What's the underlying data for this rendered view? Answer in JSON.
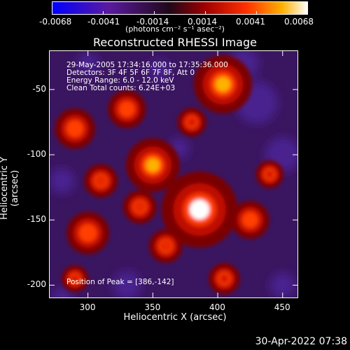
{
  "colorbar": {
    "ticks": [
      "-0.0068",
      "-0.0041",
      "-0.0014",
      "0.0014",
      "0.0041",
      "0.0068"
    ],
    "units": "(photons cm⁻² s⁻¹ asec⁻²)",
    "colors": [
      "#0000ff",
      "#5a1aa0",
      "#2a0a2a",
      "#9b0000",
      "#ff3000",
      "#ffb000",
      "#ffffff"
    ]
  },
  "title": "Reconstructed RHESSI Image",
  "info": {
    "line1": "29-May-2005 17:34:16.000 to 17:35:36.000",
    "line2": "Detectors: 3F 4F 5F 6F 7F 8F, Att 0",
    "line3": "Energy Range: 6.0 - 12.0 keV",
    "line4": "Clean     Total counts: 6.24E+03",
    "peak": "Position of Peak = [386,-142]"
  },
  "chart_data": {
    "type": "heatmap",
    "title": "Reconstructed RHESSI Image",
    "xlabel": "Heliocentric X (arcsec)",
    "ylabel": "Heliocentric Y (arcsec)",
    "xlim": [
      270,
      462
    ],
    "ylim": [
      -210,
      -20
    ],
    "xticks": [
      300,
      350,
      400,
      450
    ],
    "yticks": [
      -50,
      -100,
      -150,
      -200
    ],
    "x_tick_labels": [
      "300",
      "350",
      "400",
      "450"
    ],
    "y_tick_labels": [
      "-50",
      "-100",
      "-150",
      "-200"
    ],
    "color_range": [
      -0.0068,
      0.0068
    ],
    "peak_position": [
      386,
      -142
    ],
    "sources": [
      {
        "x": 386,
        "y": -142,
        "value": 0.0068
      },
      {
        "x": 350,
        "y": -108,
        "value": 0.0048
      },
      {
        "x": 404,
        "y": -46,
        "value": 0.0052
      },
      {
        "x": 300,
        "y": -160,
        "value": 0.0038
      },
      {
        "x": 290,
        "y": -80,
        "value": 0.0036
      },
      {
        "x": 330,
        "y": -65,
        "value": 0.0034
      },
      {
        "x": 425,
        "y": -150,
        "value": 0.0034
      },
      {
        "x": 310,
        "y": -120,
        "value": 0.003
      },
      {
        "x": 440,
        "y": -115,
        "value": 0.0025
      },
      {
        "x": 360,
        "y": -170,
        "value": 0.003
      },
      {
        "x": 405,
        "y": -195,
        "value": 0.0028
      },
      {
        "x": 290,
        "y": -195,
        "value": 0.0022
      },
      {
        "x": 340,
        "y": -140,
        "value": 0.003
      },
      {
        "x": 380,
        "y": -75,
        "value": 0.0026
      }
    ]
  },
  "footer": "30-Apr-2022 07:38"
}
